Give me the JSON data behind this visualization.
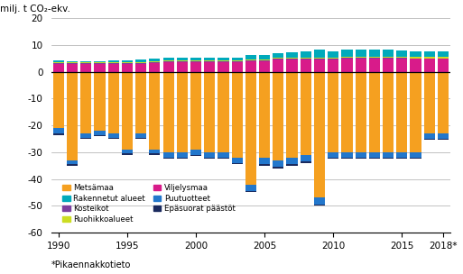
{
  "years": [
    1990,
    1991,
    1992,
    1993,
    1994,
    1995,
    1996,
    1997,
    1998,
    1999,
    2000,
    2001,
    2002,
    2003,
    2004,
    2005,
    2006,
    2007,
    2008,
    2009,
    2010,
    2011,
    2012,
    2013,
    2014,
    2015,
    2016,
    2017,
    2018
  ],
  "Metsämaa": [
    -21,
    -33,
    -23,
    -22,
    -23,
    -29,
    -23,
    -29,
    -30,
    -30,
    -29,
    -30,
    -30,
    -32,
    -42,
    -32,
    -33,
    -32,
    -31,
    -47,
    -30,
    -30,
    -30,
    -30,
    -30,
    -30,
    -30,
    -23,
    -23
  ],
  "Kosteikot": [
    0.3,
    0.3,
    0.3,
    0.3,
    0.3,
    0.3,
    0.3,
    0.3,
    0.3,
    0.3,
    0.3,
    0.3,
    0.3,
    0.3,
    0.3,
    0.3,
    0.3,
    0.3,
    0.3,
    0.3,
    0.3,
    0.3,
    0.3,
    0.3,
    0.3,
    0.3,
    0.3,
    0.3,
    0.3
  ],
  "Viljelysmaa": [
    3.0,
    2.8,
    2.8,
    2.8,
    2.8,
    3.0,
    3.0,
    3.2,
    3.5,
    3.5,
    3.5,
    3.5,
    3.5,
    3.5,
    4.0,
    4.0,
    4.5,
    4.5,
    4.5,
    4.5,
    4.5,
    5.0,
    5.0,
    5.0,
    5.0,
    5.0,
    4.8,
    4.8,
    4.8
  ],
  "Epäsuorat päästöt": [
    -0.5,
    -0.5,
    -0.5,
    -0.5,
    -0.5,
    -0.5,
    -0.5,
    -0.5,
    -0.5,
    -0.5,
    -0.5,
    -0.5,
    -0.5,
    -0.5,
    -0.5,
    -0.5,
    -0.5,
    -0.5,
    -0.5,
    -0.5,
    -0.5,
    -0.5,
    -0.5,
    -0.5,
    -0.5,
    -0.5,
    -0.5,
    -0.5,
    -0.5
  ],
  "Rakennetut alueet": [
    0.5,
    0.5,
    0.5,
    0.5,
    0.7,
    0.7,
    0.8,
    1.0,
    1.0,
    1.0,
    1.0,
    1.2,
    1.2,
    1.2,
    1.5,
    1.5,
    1.8,
    2.2,
    2.5,
    3.2,
    2.5,
    2.5,
    2.5,
    2.5,
    2.5,
    2.2,
    2.2,
    2.2,
    2.2
  ],
  "Ruohikkoalueet": [
    0.4,
    0.4,
    0.4,
    0.4,
    0.4,
    0.4,
    0.4,
    0.4,
    0.4,
    0.4,
    0.4,
    0.4,
    0.4,
    0.4,
    0.4,
    0.4,
    0.4,
    0.4,
    0.4,
    0.4,
    0.4,
    0.4,
    0.4,
    0.4,
    0.4,
    0.4,
    0.4,
    0.4,
    0.4
  ],
  "Puutuotteet": [
    -2.0,
    -1.5,
    -1.5,
    -1.5,
    -1.5,
    -1.5,
    -1.5,
    -1.5,
    -2.0,
    -2.0,
    -2.0,
    -2.0,
    -2.0,
    -2.0,
    -2.5,
    -2.5,
    -2.5,
    -2.5,
    -2.5,
    -2.5,
    -2.0,
    -2.0,
    -2.0,
    -2.0,
    -2.0,
    -2.0,
    -2.0,
    -2.0,
    -2.0
  ],
  "colors": {
    "Metsämaa": "#F5A020",
    "Kosteikot": "#7B3F9E",
    "Viljelysmaa": "#D81B8A",
    "Epäsuorat päästöt": "#1A2A5E",
    "Rakennetut alueet": "#00AABB",
    "Ruohikkoalueet": "#CCDD22",
    "Puutuotteet": "#2277CC"
  },
  "ylabel": "milj. t CO₂-ekv.",
  "ylim": [
    -60,
    20
  ],
  "yticks": [
    -60,
    -50,
    -40,
    -30,
    -20,
    -10,
    0,
    10,
    20
  ],
  "xtick_labels": [
    "1990",
    "1995",
    "2000",
    "2005",
    "2010",
    "2015",
    "2018*"
  ],
  "xtick_positions": [
    0,
    5,
    10,
    15,
    20,
    25,
    28
  ],
  "footnote": "*Pikaennakkotieto",
  "legend_order": [
    "Metsämaa",
    "Rakennetut alueet",
    "Kosteikot",
    "Ruohikkoalueet",
    "Viljelysmaa",
    "Puutuotteet",
    "Epäsuorat päästöt"
  ]
}
